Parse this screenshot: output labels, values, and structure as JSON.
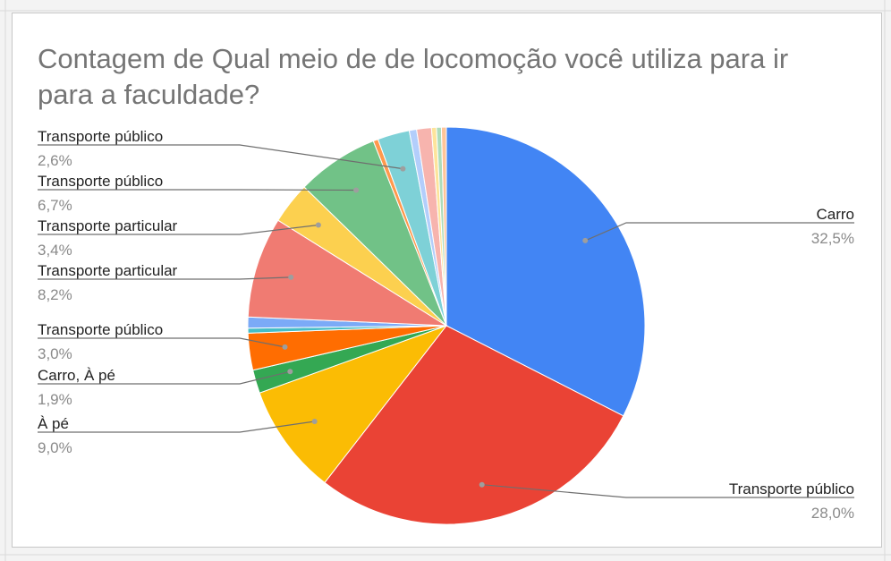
{
  "chart_data": {
    "type": "pie",
    "title": "Contagem de Qual meio de de locomoção você utiliza para ir para a faculdade?",
    "start_angle": 0,
    "direction": "clockwise",
    "slices": [
      {
        "label": "Carro",
        "value": 32.5,
        "pct_label": "32,5%",
        "color": "#4285f4",
        "labeled": true
      },
      {
        "label": "Transporte público",
        "value": 28.0,
        "pct_label": "28,0%",
        "color": "#ea4335",
        "labeled": true
      },
      {
        "label": "À pé",
        "value": 9.0,
        "pct_label": "9,0%",
        "color": "#fbbc04",
        "labeled": true
      },
      {
        "label": "Carro, À pé",
        "value": 1.9,
        "pct_label": "1,9%",
        "color": "#34a853",
        "labeled": true
      },
      {
        "label": "Transporte público",
        "value": 3.0,
        "pct_label": "3,0%",
        "color": "#ff6d01",
        "labeled": true
      },
      {
        "label": "",
        "value": 0.4,
        "pct_label": "",
        "color": "#46bdc6",
        "labeled": false
      },
      {
        "label": "",
        "value": 0.9,
        "pct_label": "",
        "color": "#7baaf7",
        "labeled": false
      },
      {
        "label": "Transporte particular",
        "value": 8.2,
        "pct_label": "8,2%",
        "color": "#f07b72",
        "labeled": true
      },
      {
        "label": "Transporte particular",
        "value": 3.4,
        "pct_label": "3,4%",
        "color": "#fcd04f",
        "labeled": true
      },
      {
        "label": "Transporte público",
        "value": 6.7,
        "pct_label": "6,7%",
        "color": "#71c287",
        "labeled": true
      },
      {
        "label": "",
        "value": 0.4,
        "pct_label": "",
        "color": "#ff994d",
        "labeled": false
      },
      {
        "label": "Transporte público",
        "value": 2.6,
        "pct_label": "2,6%",
        "color": "#7ed1d7",
        "labeled": true
      },
      {
        "label": "",
        "value": 0.6,
        "pct_label": "",
        "color": "#b3cefb",
        "labeled": false
      },
      {
        "label": "",
        "value": 1.2,
        "pct_label": "",
        "color": "#f7b4ae",
        "labeled": false
      },
      {
        "label": "",
        "value": 0.4,
        "pct_label": "",
        "color": "#fde49b",
        "labeled": false
      },
      {
        "label": "",
        "value": 0.4,
        "pct_label": "",
        "color": "#aedcba",
        "labeled": false
      },
      {
        "label": "",
        "value": 0.4,
        "pct_label": "",
        "color": "#ffc599",
        "labeled": false
      }
    ]
  }
}
